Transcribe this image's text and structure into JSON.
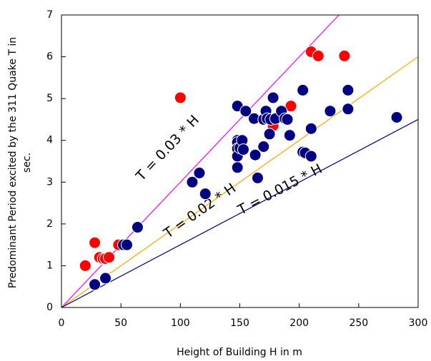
{
  "chart_data": {
    "type": "scatter",
    "xlabel": "Height of Building H in m",
    "ylabel": [
      "Predominant Period excited by the 311 Quake T in",
      "sec."
    ],
    "xlim": [
      0,
      300
    ],
    "ylim": [
      0,
      7
    ],
    "xticks": [
      0,
      50,
      100,
      150,
      200,
      250,
      300
    ],
    "yticks": [
      0,
      1,
      2,
      3,
      4,
      5,
      6,
      7
    ],
    "series": [
      {
        "color": "#ff0000",
        "x": [
          20,
          28,
          32,
          35,
          37,
          40,
          48,
          100,
          178,
          193,
          210,
          216,
          238
        ],
        "y": [
          1.0,
          1.55,
          1.2,
          1.17,
          1.17,
          1.2,
          1.5,
          5.02,
          4.35,
          4.82,
          6.12,
          6.02,
          6.02
        ]
      },
      {
        "color": "#000080",
        "x": [
          28,
          37,
          52,
          55,
          64,
          110,
          116,
          121,
          148,
          148,
          148,
          148,
          148,
          148,
          150,
          152,
          153,
          155,
          162,
          163,
          165,
          170,
          170,
          172,
          173,
          175,
          176,
          178,
          180,
          185,
          188,
          190,
          192,
          203,
          203,
          205,
          210,
          210,
          226,
          241,
          241,
          282
        ],
        "y": [
          0.55,
          0.7,
          1.5,
          1.5,
          1.92,
          3.0,
          3.22,
          2.72,
          4.82,
          4.0,
          3.95,
          3.8,
          3.62,
          3.35,
          3.82,
          4.0,
          3.78,
          4.7,
          4.52,
          3.65,
          3.1,
          3.85,
          4.5,
          4.7,
          4.52,
          4.15,
          4.5,
          5.02,
          4.52,
          4.7,
          4.52,
          4.5,
          4.12,
          5.2,
          3.72,
          3.7,
          4.28,
          3.62,
          4.7,
          5.2,
          4.75,
          4.55
        ]
      }
    ],
    "reference_lines": [
      {
        "label": "T = 0.03 * H",
        "slope": 0.03,
        "color": "#ff00ff"
      },
      {
        "label": "T = 0.02 * H",
        "slope": 0.02,
        "color": "#ffa500"
      },
      {
        "label": "T = 0.015 * H",
        "slope": 0.015,
        "color": "#000080"
      }
    ]
  }
}
